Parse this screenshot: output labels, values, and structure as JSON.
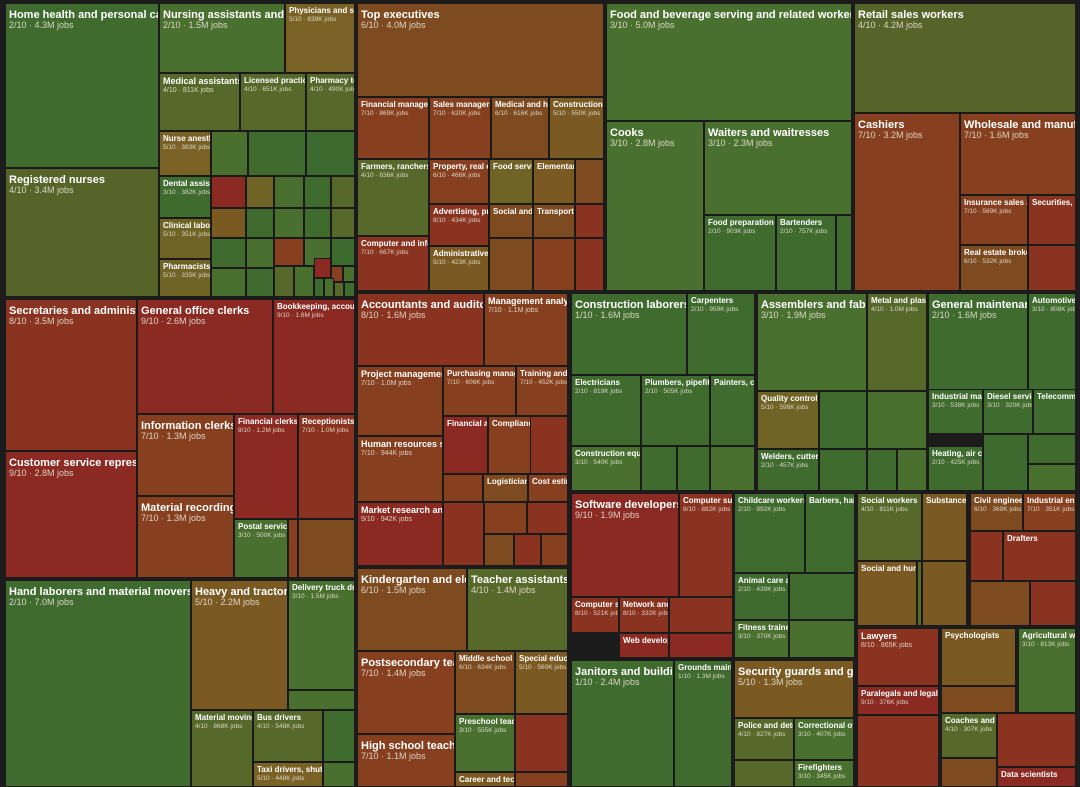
{
  "chart_data": {
    "type": "treemap",
    "title": "",
    "palette": {
      "g1": "#3d6a2e",
      "g2": "#4a7030",
      "g3": "#55702c",
      "o1": "#6a6a26",
      "o2": "#7a5a22",
      "o3": "#86501f",
      "r1": "#8a3a1e",
      "r2": "#7c2a1a",
      "r3": "#8a2a22"
    },
    "items": [
      {
        "name": "Home health and personal care aides",
        "sub": "2/10 · 4.3M jobs",
        "color": "#3f6b2f"
      },
      {
        "name": "Registered nurses",
        "sub": "4/10 · 3.4M jobs",
        "color": "#56642a"
      },
      {
        "name": "Nursing assistants and orderlies",
        "sub": "2/10 · 1.5M jobs",
        "color": "#4a7030"
      },
      {
        "name": "Physicians and surgeons",
        "sub": "5/10 · 839K jobs",
        "color": "#7a6226"
      },
      {
        "name": "Medical assistants",
        "sub": "4/10 · 811K jobs",
        "color": "#56682a"
      },
      {
        "name": "Licensed practical nurses",
        "sub": "4/10 · 651K jobs",
        "color": "#56682a"
      },
      {
        "name": "Pharmacy technicians",
        "sub": "4/10 · 490K jobs",
        "color": "#56682a"
      },
      {
        "name": "Nurse anesthetists",
        "sub": "5/10 · 383K jobs",
        "color": "#7a6226"
      },
      {
        "name": "Dental assistants",
        "sub": "3/10 · 382K jobs",
        "color": "#3f6b2f"
      },
      {
        "name": "Clinical laboratory technologists",
        "sub": "5/10 · 351K jobs",
        "color": "#6f6326"
      },
      {
        "name": "Pharmacists",
        "sub": "5/10 · 335K jobs",
        "color": "#6f6326"
      },
      {
        "name": "Top executives",
        "sub": "6/10 · 4.0M jobs",
        "color": "#7e4a20"
      },
      {
        "name": "Financial managers",
        "sub": "7/10 · 869K jobs",
        "color": "#86401f"
      },
      {
        "name": "Sales managers",
        "sub": "7/10 · 620K jobs",
        "color": "#86401f"
      },
      {
        "name": "Medical and health services managers",
        "sub": "6/10 · 616K jobs",
        "color": "#7e4a20"
      },
      {
        "name": "Construction managers",
        "sub": "5/10 · 550K jobs",
        "color": "#7a5a22"
      },
      {
        "name": "Farmers, ranchers",
        "sub": "4/10 · 836K jobs",
        "color": "#56682a"
      },
      {
        "name": "Property, real estate managers",
        "sub": "6/10 · 466K jobs",
        "color": "#86401f"
      },
      {
        "name": "Food service managers",
        "sub": "",
        "color": "#6f6326"
      },
      {
        "name": "Elementary school principals",
        "sub": "",
        "color": "#7a5a22"
      },
      {
        "name": "Advertising, promotions managers",
        "sub": "8/10 · 434K jobs",
        "color": "#8a3320"
      },
      {
        "name": "Social and community managers",
        "sub": "",
        "color": "#7e4a20"
      },
      {
        "name": "Transportation managers",
        "sub": "",
        "color": "#7e4a20"
      },
      {
        "name": "Computer and information systems managers",
        "sub": "7/10 · 667K jobs",
        "color": "#8a3320"
      },
      {
        "name": "Administrative services managers",
        "sub": "5/10 · 423K jobs",
        "color": "#7a5a22"
      },
      {
        "name": "Food and beverage serving and related workers",
        "sub": "3/10 · 5.0M jobs",
        "color": "#4a7030"
      },
      {
        "name": "Cooks",
        "sub": "3/10 · 2.8M jobs",
        "color": "#4a7030"
      },
      {
        "name": "Waiters and waitresses",
        "sub": "3/10 · 2.3M jobs",
        "color": "#4a7030"
      },
      {
        "name": "Food preparation workers",
        "sub": "2/10 · 903K jobs",
        "color": "#3f6b2f"
      },
      {
        "name": "Bartenders",
        "sub": "2/10 · 757K jobs",
        "color": "#3f6b2f"
      },
      {
        "name": "Retail sales workers",
        "sub": "4/10 · 4.2M jobs",
        "color": "#56642a"
      },
      {
        "name": "Cashiers",
        "sub": "7/10 · 3.2M jobs",
        "color": "#86401f"
      },
      {
        "name": "Wholesale and manufacturing sales representatives",
        "sub": "7/10 · 1.6M jobs",
        "color": "#86401f"
      },
      {
        "name": "Insurance sales agents",
        "sub": "7/10 · 569K jobs",
        "color": "#86401f"
      },
      {
        "name": "Securities, commodities agents",
        "sub": "",
        "color": "#8a3320"
      },
      {
        "name": "Real estate brokers",
        "sub": "6/10 · 532K jobs",
        "color": "#7e4a20"
      },
      {
        "name": "Secretaries and administrative assistants",
        "sub": "8/10 · 3.5M jobs",
        "color": "#8a3320"
      },
      {
        "name": "Customer service representatives",
        "sub": "9/10 · 2.8M jobs",
        "color": "#8a2a22"
      },
      {
        "name": "General office clerks",
        "sub": "9/10 · 2.6M jobs",
        "color": "#8a2a22"
      },
      {
        "name": "Bookkeeping, accounting clerks",
        "sub": "9/10 · 1.6M jobs",
        "color": "#8a2a22"
      },
      {
        "name": "Information clerks",
        "sub": "7/10 · 1.3M jobs",
        "color": "#86401f"
      },
      {
        "name": "Financial clerks",
        "sub": "9/10 · 1.2M jobs",
        "color": "#8a2a22"
      },
      {
        "name": "Receptionists",
        "sub": "7/10 · 1.0M jobs",
        "color": "#8a3320"
      },
      {
        "name": "Material recording clerks",
        "sub": "7/10 · 1.3M jobs",
        "color": "#86401f"
      },
      {
        "name": "Postal service workers",
        "sub": "3/10 · 500K jobs",
        "color": "#4a7030"
      },
      {
        "name": "Hand laborers and material movers",
        "sub": "2/10 · 7.0M jobs",
        "color": "#3f6b2f"
      },
      {
        "name": "Heavy and tractor-trailer truck drivers",
        "sub": "5/10 · 2.2M jobs",
        "color": "#7a5a22"
      },
      {
        "name": "Delivery truck drivers",
        "sub": "3/10 · 1.5M jobs",
        "color": "#4a7030"
      },
      {
        "name": "Material moving machine operators",
        "sub": "4/10 · 868K jobs",
        "color": "#56682a"
      },
      {
        "name": "Bus drivers",
        "sub": "4/10 · 548K jobs",
        "color": "#56682a"
      },
      {
        "name": "Taxi drivers, shuttle drivers",
        "sub": "5/10 · 448K jobs",
        "color": "#7a6226"
      },
      {
        "name": "Accountants and auditors",
        "sub": "8/10 · 1.6M jobs",
        "color": "#8a3320"
      },
      {
        "name": "Management analysts",
        "sub": "7/10 · 1.1M jobs",
        "color": "#86401f"
      },
      {
        "name": "Project management specialists",
        "sub": "7/10 · 1.0M jobs",
        "color": "#86401f"
      },
      {
        "name": "Purchasing managers",
        "sub": "7/10 · 606K jobs",
        "color": "#86401f"
      },
      {
        "name": "Training and development",
        "sub": "7/10 · 452K jobs",
        "color": "#86401f"
      },
      {
        "name": "Human resources specialists",
        "sub": "7/10 · 944K jobs",
        "color": "#86401f"
      },
      {
        "name": "Financial analysts",
        "sub": "",
        "color": "#8a2a22"
      },
      {
        "name": "Compliance officers",
        "sub": "",
        "color": "#86401f"
      },
      {
        "name": "Logisticians",
        "sub": "",
        "color": "#7e4a20"
      },
      {
        "name": "Cost estimators",
        "sub": "",
        "color": "#86401f"
      },
      {
        "name": "Market research analysts",
        "sub": "9/10 · 942K jobs",
        "color": "#8a2a22"
      },
      {
        "name": "Construction laborers",
        "sub": "1/10 · 1.6M jobs",
        "color": "#3f6b2f"
      },
      {
        "name": "Carpenters",
        "sub": "2/10 · 959K jobs",
        "color": "#3f6b2f"
      },
      {
        "name": "Electricians",
        "sub": "2/10 · 819K jobs",
        "color": "#3f6b2f"
      },
      {
        "name": "Plumbers, pipefitters",
        "sub": "2/10 · 505K jobs",
        "color": "#3f6b2f"
      },
      {
        "name": "Painters, construction",
        "sub": "",
        "color": "#3f6b2f"
      },
      {
        "name": "Construction equipment operators",
        "sub": "3/10 · 540K jobs",
        "color": "#4a7030"
      },
      {
        "name": "Assemblers and fabricators",
        "sub": "3/10 · 1.9M jobs",
        "color": "#4a7030"
      },
      {
        "name": "Metal and plastic machine workers",
        "sub": "4/10 · 1.0M jobs",
        "color": "#56682a"
      },
      {
        "name": "Quality control inspectors",
        "sub": "5/10 · 598K jobs",
        "color": "#6f6326"
      },
      {
        "name": "Welders, cutters",
        "sub": "2/10 · 457K jobs",
        "color": "#3f6b2f"
      },
      {
        "name": "General maintenance and repair workers",
        "sub": "2/10 · 1.6M jobs",
        "color": "#3f6b2f"
      },
      {
        "name": "Automotive service technicians",
        "sub": "3/10 · 808K jobs",
        "color": "#3f6b2f"
      },
      {
        "name": "Industrial machinery mechanics",
        "sub": "3/10 · 538K jobs",
        "color": "#3f6b2f"
      },
      {
        "name": "Diesel service technicians",
        "sub": "3/10 · 320K jobs",
        "color": "#3f6b2f"
      },
      {
        "name": "Telecommunications technicians",
        "sub": "",
        "color": "#3f6b2f"
      },
      {
        "name": "Heating, air conditioning mechanics",
        "sub": "2/10 · 425K jobs",
        "color": "#3f6b2f"
      },
      {
        "name": "Kindergarten and elementary teachers",
        "sub": "6/10 · 1.5M jobs",
        "color": "#7e4a20"
      },
      {
        "name": "Teacher assistants",
        "sub": "4/10 · 1.4M jobs",
        "color": "#56682a"
      },
      {
        "name": "Postsecondary teachers",
        "sub": "7/10 · 1.4M jobs",
        "color": "#86401f"
      },
      {
        "name": "Middle school teachers",
        "sub": "6/10 · 634K jobs",
        "color": "#7e4a20"
      },
      {
        "name": "Special education teachers",
        "sub": "5/10 · 560K jobs",
        "color": "#7a5a22"
      },
      {
        "name": "Preschool teachers",
        "sub": "3/10 · 555K jobs",
        "color": "#4a7030"
      },
      {
        "name": "High school teachers",
        "sub": "7/10 · 1.1M jobs",
        "color": "#86401f"
      },
      {
        "name": "Career and technical teachers",
        "sub": "",
        "color": "#7a5a22"
      },
      {
        "name": "Software developers, QA",
        "sub": "9/10 · 1.9M jobs",
        "color": "#8a2a22"
      },
      {
        "name": "Computer support specialists",
        "sub": "8/10 · 882K jobs",
        "color": "#8a3320"
      },
      {
        "name": "Computer systems analysts",
        "sub": "8/10 · 521K jobs",
        "color": "#8a3320"
      },
      {
        "name": "Network and computer systems administrators",
        "sub": "8/10 · 332K jobs",
        "color": "#8a3320"
      },
      {
        "name": "Web developers",
        "sub": "",
        "color": "#8a2a22"
      },
      {
        "name": "Janitors and building cleaners",
        "sub": "1/10 · 2.4M jobs",
        "color": "#3f6b2f"
      },
      {
        "name": "Grounds maintenance workers",
        "sub": "1/10 · 1.3M jobs",
        "color": "#3f6b2f"
      },
      {
        "name": "Childcare workers",
        "sub": "2/10 · 992K jobs",
        "color": "#3f6b2f"
      },
      {
        "name": "Barbers, hairstylists",
        "sub": "",
        "color": "#3f6b2f"
      },
      {
        "name": "Animal care and service workers",
        "sub": "2/10 · 439K jobs",
        "color": "#3f6b2f"
      },
      {
        "name": "Fitness trainers",
        "sub": "3/10 · 370K jobs",
        "color": "#4a7030"
      },
      {
        "name": "Social workers",
        "sub": "4/10 · 811K jobs",
        "color": "#56682a"
      },
      {
        "name": "Substance abuse counselors",
        "sub": "",
        "color": "#7a5a22"
      },
      {
        "name": "Social and human service assistants",
        "sub": "",
        "color": "#7a5a22"
      },
      {
        "name": "Civil engineers",
        "sub": "6/10 · 369K jobs",
        "color": "#7e4a20"
      },
      {
        "name": "Industrial engineers",
        "sub": "7/10 · 351K jobs",
        "color": "#86401f"
      },
      {
        "name": "Drafters",
        "sub": "",
        "color": "#8a3320"
      },
      {
        "name": "Lawyers",
        "sub": "8/10 · 865K jobs",
        "color": "#8a3320"
      },
      {
        "name": "Paralegals and legal assistants",
        "sub": "9/10 · 376K jobs",
        "color": "#8a2a22"
      },
      {
        "name": "Psychologists",
        "sub": "",
        "color": "#7a5a22"
      },
      {
        "name": "Agricultural workers",
        "sub": "3/10 · 813K jobs",
        "color": "#4a7030"
      },
      {
        "name": "Security guards and gambling surveillance officers",
        "sub": "5/10 · 1.3M jobs",
        "color": "#7a5a22"
      },
      {
        "name": "Police and detectives",
        "sub": "4/10 · 827K jobs",
        "color": "#56682a"
      },
      {
        "name": "Correctional officers",
        "sub": "3/10 · 407K jobs",
        "color": "#4a7030"
      },
      {
        "name": "Firefighters",
        "sub": "3/10 · 345K jobs",
        "color": "#4a7030"
      },
      {
        "name": "Coaches and scouts",
        "sub": "4/10 · 307K jobs",
        "color": "#56682a"
      },
      {
        "name": "Data scientists",
        "sub": "",
        "color": "#8a2a22"
      }
    ]
  }
}
